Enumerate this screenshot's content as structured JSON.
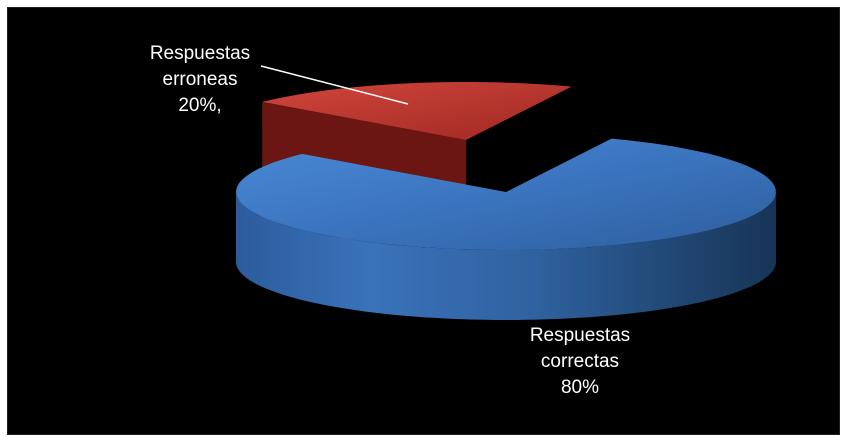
{
  "chart_data": {
    "type": "pie",
    "style": "3d-exploded",
    "slices": [
      {
        "label_line1": "Respuestas",
        "label_line2": "correctas",
        "label_value": "80%",
        "value": 80,
        "color": "#3b78c4"
      },
      {
        "label_line1": "Respuestas",
        "label_line2": "erroneas",
        "label_value": "20%,",
        "value": 20,
        "color": "#c8372e"
      }
    ],
    "background": "#000000",
    "label_color": "#ffffff"
  }
}
